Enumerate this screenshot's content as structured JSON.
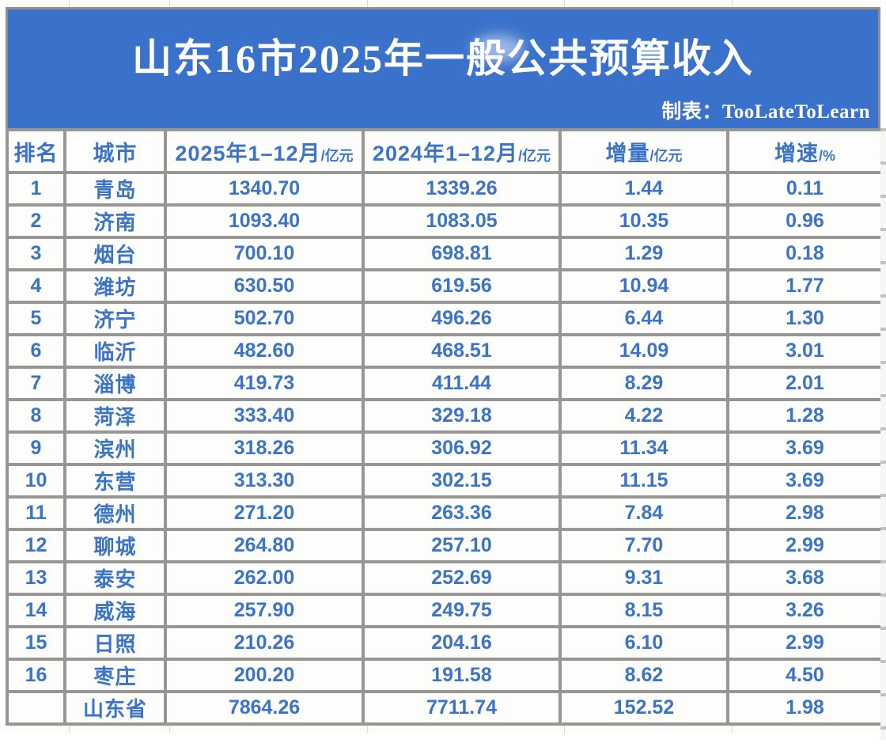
{
  "banner": {
    "title": "山东16市2025年一般公共预算收入",
    "credit": "制表：TooLateToLearn"
  },
  "table": {
    "columns": [
      {
        "key": "rank",
        "label": "排名",
        "unit": ""
      },
      {
        "key": "city",
        "label": "城市",
        "unit": ""
      },
      {
        "key": "y2025",
        "label": "2025年1–12月",
        "unit": "/亿元"
      },
      {
        "key": "y2024",
        "label": "2024年1–12月",
        "unit": "/亿元"
      },
      {
        "key": "delta",
        "label": "增量",
        "unit": "/亿元"
      },
      {
        "key": "growth",
        "label": "增速",
        "unit": "/%"
      }
    ],
    "rows": [
      [
        "1",
        "青岛",
        "1340.70",
        "1339.26",
        "1.44",
        "0.11"
      ],
      [
        "2",
        "济南",
        "1093.40",
        "1083.05",
        "10.35",
        "0.96"
      ],
      [
        "3",
        "烟台",
        "700.10",
        "698.81",
        "1.29",
        "0.18"
      ],
      [
        "4",
        "潍坊",
        "630.50",
        "619.56",
        "10.94",
        "1.77"
      ],
      [
        "5",
        "济宁",
        "502.70",
        "496.26",
        "6.44",
        "1.30"
      ],
      [
        "6",
        "临沂",
        "482.60",
        "468.51",
        "14.09",
        "3.01"
      ],
      [
        "7",
        "淄博",
        "419.73",
        "411.44",
        "8.29",
        "2.01"
      ],
      [
        "8",
        "菏泽",
        "333.40",
        "329.18",
        "4.22",
        "1.28"
      ],
      [
        "9",
        "滨州",
        "318.26",
        "306.92",
        "11.34",
        "3.69"
      ],
      [
        "10",
        "东营",
        "313.30",
        "302.15",
        "11.15",
        "3.69"
      ],
      [
        "11",
        "德州",
        "271.20",
        "263.36",
        "7.84",
        "2.98"
      ],
      [
        "12",
        "聊城",
        "264.80",
        "257.10",
        "7.70",
        "2.99"
      ],
      [
        "13",
        "泰安",
        "262.00",
        "252.69",
        "9.31",
        "3.68"
      ],
      [
        "14",
        "威海",
        "257.90",
        "249.75",
        "8.15",
        "3.26"
      ],
      [
        "15",
        "日照",
        "210.26",
        "204.16",
        "6.10",
        "2.99"
      ],
      [
        "16",
        "枣庄",
        "200.20",
        "191.58",
        "8.62",
        "4.50"
      ],
      [
        "",
        "山东省",
        "7864.26",
        "7711.74",
        "152.52",
        "1.98"
      ]
    ]
  },
  "chart_data": {
    "type": "table",
    "title": "山东16市2025年一般公共预算收入",
    "credit": "制表：TooLateToLearn",
    "columns": [
      "排名",
      "城市",
      "2025年1–12月/亿元",
      "2024年1–12月/亿元",
      "增量/亿元",
      "增速/%"
    ],
    "rows": [
      [
        1,
        "青岛",
        1340.7,
        1339.26,
        1.44,
        0.11
      ],
      [
        2,
        "济南",
        1093.4,
        1083.05,
        10.35,
        0.96
      ],
      [
        3,
        "烟台",
        700.1,
        698.81,
        1.29,
        0.18
      ],
      [
        4,
        "潍坊",
        630.5,
        619.56,
        10.94,
        1.77
      ],
      [
        5,
        "济宁",
        502.7,
        496.26,
        6.44,
        1.3
      ],
      [
        6,
        "临沂",
        482.6,
        468.51,
        14.09,
        3.01
      ],
      [
        7,
        "淄博",
        419.73,
        411.44,
        8.29,
        2.01
      ],
      [
        8,
        "菏泽",
        333.4,
        329.18,
        4.22,
        1.28
      ],
      [
        9,
        "滨州",
        318.26,
        306.92,
        11.34,
        3.69
      ],
      [
        10,
        "东营",
        313.3,
        302.15,
        11.15,
        3.69
      ],
      [
        11,
        "德州",
        271.2,
        263.36,
        7.84,
        2.98
      ],
      [
        12,
        "聊城",
        264.8,
        257.1,
        7.7,
        2.99
      ],
      [
        13,
        "泰安",
        262.0,
        252.69,
        9.31,
        3.68
      ],
      [
        14,
        "威海",
        257.9,
        249.75,
        8.15,
        3.26
      ],
      [
        15,
        "日照",
        210.26,
        204.16,
        6.1,
        2.99
      ],
      [
        16,
        "枣庄",
        200.2,
        191.58,
        8.62,
        4.5
      ],
      [
        null,
        "山东省",
        7864.26,
        7711.74,
        152.52,
        1.98
      ]
    ]
  },
  "colors": {
    "banner_blue": "#3a72cb",
    "text_blue": "#3b74c6",
    "border_gray": "#989693",
    "cell_bg": "#fdfdfc"
  }
}
